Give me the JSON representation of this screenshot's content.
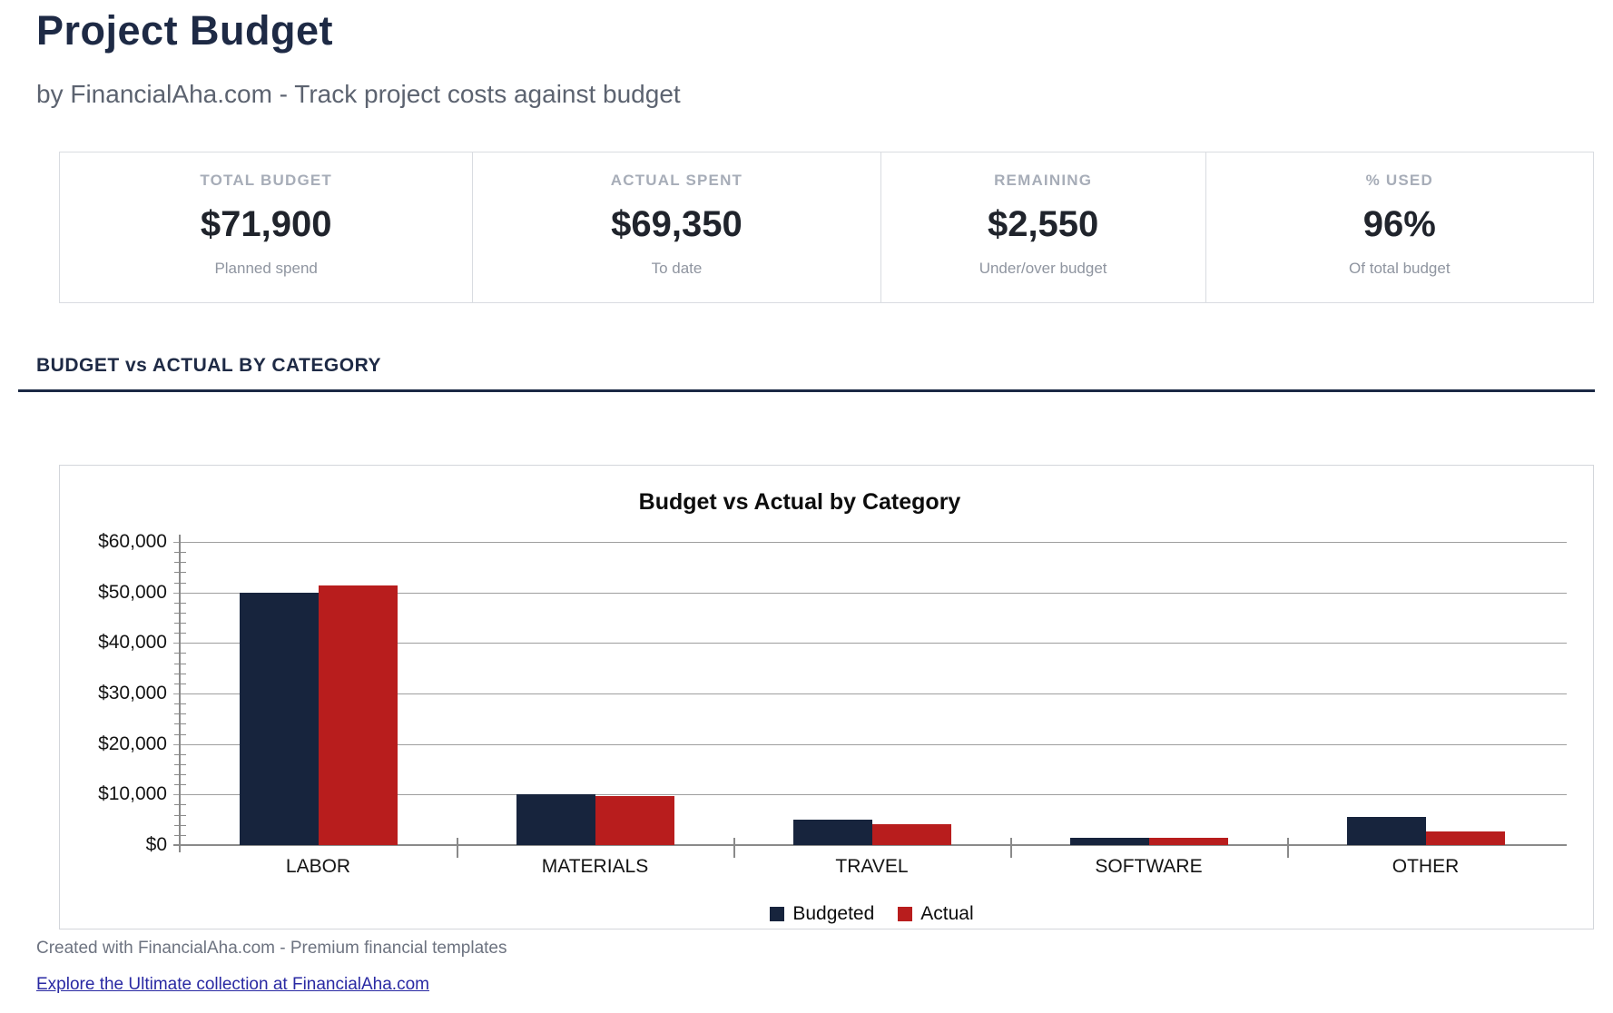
{
  "page": {
    "title": "Project Budget",
    "subtitle": "by FinancialAha.com - Track project costs against budget"
  },
  "stats": {
    "cards": [
      {
        "label": "TOTAL BUDGET",
        "value": "$71,900",
        "sub": "Planned spend"
      },
      {
        "label": "ACTUAL SPENT",
        "value": "$69,350",
        "sub": "To date"
      },
      {
        "label": "REMAINING",
        "value": "$2,550",
        "sub": "Under/over budget"
      },
      {
        "label": "% USED",
        "value": "96%",
        "sub": "Of total budget"
      }
    ]
  },
  "section": {
    "heading": "BUDGET vs ACTUAL BY CATEGORY"
  },
  "chart_data": {
    "type": "bar",
    "title": "Budget vs Actual by Category",
    "categories": [
      "LABOR",
      "MATERIALS",
      "TRAVEL",
      "SOFTWARE",
      "OTHER"
    ],
    "series": [
      {
        "name": "Budgeted",
        "color": "#17243d",
        "values": [
          50000,
          10000,
          5000,
          1400,
          5500
        ]
      },
      {
        "name": "Actual",
        "color": "#b81d1d",
        "values": [
          51400,
          9650,
          4200,
          1400,
          2700
        ]
      }
    ],
    "xlabel": "",
    "ylabel": "",
    "ylim": [
      0,
      60000
    ],
    "ytick_step": 10000,
    "minor_tick_step": 2000,
    "ytick_labels": [
      "$0",
      "$10,000",
      "$20,000",
      "$30,000",
      "$40,000",
      "$50,000",
      "$60,000"
    ],
    "grid": true,
    "legend_position": "bottom"
  },
  "footer": {
    "credit": "Created with FinancialAha.com - Premium financial templates",
    "link": "Explore the Ultimate collection at FinancialAha.com"
  },
  "colors": {
    "heading_navy": "#1e2a45",
    "rule_navy": "#1b2945",
    "budgeted_bar": "#17243d",
    "actual_bar": "#b81d1d",
    "link_blue": "#2929a3"
  }
}
